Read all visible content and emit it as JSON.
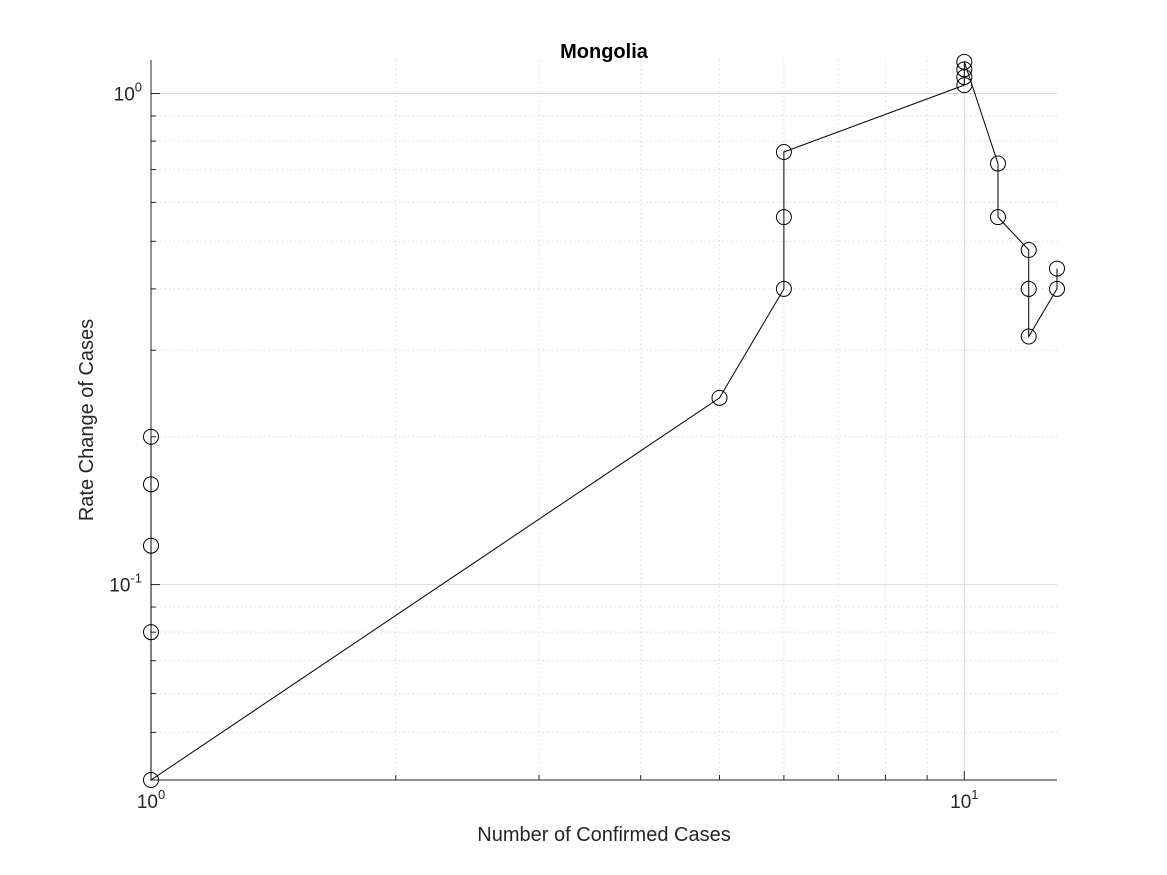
{
  "chart_data": {
    "type": "line",
    "title": "Mongolia",
    "xlabel": "Number of Confirmed Cases",
    "ylabel": "Rate Change of Cases",
    "x_scale": "log",
    "y_scale": "log",
    "xlim": [
      1,
      13
    ],
    "ylim": [
      0.04,
      1.17
    ],
    "grid": true,
    "x_ticks": [
      {
        "base": "10",
        "exp": "0",
        "value": 1
      },
      {
        "base": "10",
        "exp": "1",
        "value": 10
      }
    ],
    "y_ticks": [
      {
        "base": "10",
        "exp": "-1",
        "value": 0.1
      },
      {
        "base": "10",
        "exp": "0",
        "value": 1
      }
    ],
    "marker": "circle",
    "line_color": "#000000",
    "series": [
      {
        "x": [
          1,
          1,
          1,
          1,
          1,
          5,
          6,
          6,
          6,
          10,
          10,
          10,
          10,
          11,
          11,
          12,
          12,
          12,
          13,
          13
        ],
        "y": [
          0.2,
          0.16,
          0.12,
          0.08,
          0.04,
          0.24,
          0.4,
          0.56,
          0.76,
          1.04,
          1.08,
          1.12,
          1.16,
          0.72,
          0.56,
          0.48,
          0.4,
          0.32,
          0.4,
          0.44
        ]
      }
    ]
  }
}
